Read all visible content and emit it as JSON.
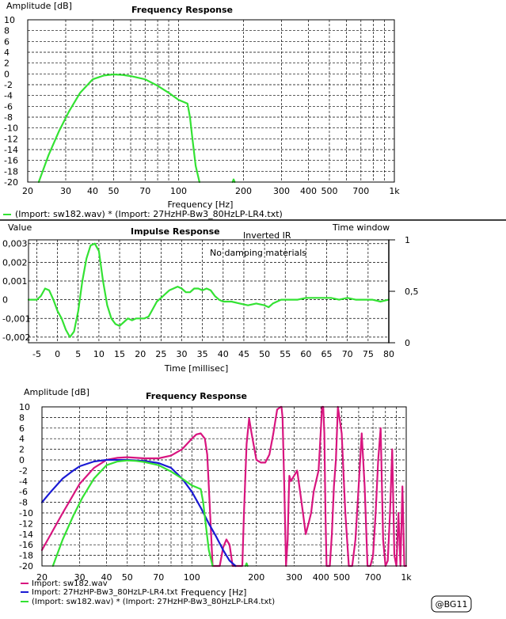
{
  "chart_data": [
    {
      "type": "line",
      "title": "Frequency Response",
      "xlabel": "Frequency [Hz]",
      "ylabel": "Amplitude [dB]",
      "xscale": "log",
      "xlim": [
        20,
        1000
      ],
      "ylim": [
        -20,
        10
      ],
      "x_tick_labels": [
        "20",
        "30",
        "40",
        "50",
        "70",
        "100",
        "200",
        "300",
        "400",
        "500",
        "700",
        "1k"
      ],
      "x_tick_values": [
        20,
        30,
        40,
        50,
        70,
        100,
        200,
        300,
        400,
        500,
        700,
        1000
      ],
      "y_tick_values": [
        10,
        8,
        6,
        4,
        2,
        0,
        -2,
        -4,
        -6,
        -8,
        -10,
        -12,
        -14,
        -16,
        -18,
        -20
      ],
      "grid": true,
      "legend": [
        "(Import:  sw182.wav)  *  (Import:  27HzHP-Bw3_80HzLP-LR4.txt)"
      ],
      "series": [
        {
          "name": "(Import:  sw182.wav)  *  (Import:  27HzHP-Bw3_80HzLP-LR4.txt)",
          "color": "#33e233",
          "x": [
            22.5,
            25,
            28,
            31,
            35,
            40,
            45,
            50,
            55,
            60,
            70,
            80,
            90,
            100,
            110,
            113,
            116,
            120,
            125
          ],
          "y": [
            -20,
            -15,
            -10.5,
            -7,
            -3.5,
            -1,
            -0.3,
            -0.1,
            -0.2,
            -0.4,
            -1,
            -2.2,
            -3.5,
            -4.8,
            -5.5,
            -8,
            -12,
            -17,
            -20
          ]
        },
        {
          "name": "",
          "color": "#33e233",
          "x": [
            178,
            180,
            182
          ],
          "y": [
            -20,
            -19.5,
            -20
          ]
        }
      ]
    },
    {
      "type": "line",
      "title": "Impulse Response",
      "xlabel": "Time [millisec]",
      "ylabel": "Value",
      "y2label": "Time window",
      "xlim": [
        -7,
        80
      ],
      "ylim": [
        -0.0023,
        0.0032
      ],
      "y2lim": [
        0,
        1
      ],
      "x_tick_values": [
        -5,
        0,
        5,
        10,
        15,
        20,
        25,
        30,
        35,
        40,
        45,
        50,
        55,
        60,
        65,
        70,
        75,
        80
      ],
      "y_tick_values": [
        0.003,
        0.002,
        0.001,
        0,
        -0.001,
        -0.002
      ],
      "y_tick_labels": [
        "0,003",
        "0,002",
        "0,001",
        "0",
        "-0,001",
        "-0,002"
      ],
      "y2_tick_values": [
        1,
        0.5,
        0
      ],
      "y2_tick_labels": [
        "1",
        "0,5",
        "0"
      ],
      "grid": true,
      "annotations": [
        "Inverted IR",
        "No damping materials"
      ],
      "series": [
        {
          "name": "",
          "color": "#33e233",
          "x": [
            -7,
            -5,
            -4,
            -3,
            -2,
            -1,
            0,
            1,
            2,
            3,
            4,
            5,
            6,
            7,
            8,
            9,
            10,
            11,
            12,
            13,
            14,
            15,
            16,
            17,
            18,
            19,
            20,
            21,
            22,
            23,
            24,
            25,
            26,
            27,
            28,
            29,
            30,
            31,
            32,
            33,
            34,
            35,
            36,
            37,
            38,
            39,
            40,
            42,
            44,
            46,
            48,
            50,
            51,
            52,
            54,
            56,
            58,
            60,
            62,
            64,
            66,
            68,
            70,
            72,
            74,
            76,
            78,
            80
          ],
          "y": [
            0,
            0,
            0.0002,
            0.0006,
            0.0005,
            0,
            -0.0006,
            -0.001,
            -0.0016,
            -0.002,
            -0.0017,
            -0.0006,
            0.001,
            0.0022,
            0.0029,
            0.003,
            0.0026,
            0.001,
            -0.0003,
            -0.001,
            -0.0013,
            -0.0014,
            -0.0012,
            -0.001,
            -0.0011,
            -0.001,
            -0.001,
            -0.001,
            -0.0009,
            -0.0005,
            -0.0001,
            0.0001,
            0.0003,
            0.0005,
            0.0006,
            0.0007,
            0.0006,
            0.0004,
            0.0004,
            0.0006,
            0.0006,
            0.0005,
            0.0006,
            0.0005,
            0.0002,
            0,
            -0.0001,
            -0.0001,
            -0.0002,
            -0.0003,
            -0.0002,
            -0.0003,
            -0.0004,
            -0.0002,
            0,
            0,
            0,
            0.0001,
            0.0001,
            0.0001,
            0.0001,
            0,
            0.0001,
            0,
            0,
            0,
            -0.0001,
            0
          ]
        },
        {
          "name": "Time window",
          "color": "#000000",
          "axis": "y2",
          "x": [
            80,
            80
          ],
          "y": [
            0,
            1
          ]
        }
      ]
    },
    {
      "type": "line",
      "title": "Frequency Response",
      "xlabel": "Frequency [Hz]",
      "ylabel": "Amplitude [dB]",
      "xscale": "log",
      "xlim": [
        20,
        1000
      ],
      "ylim": [
        -20,
        10
      ],
      "x_tick_labels": [
        "20",
        "30",
        "40",
        "50",
        "70",
        "100",
        "200",
        "300",
        "400",
        "500",
        "700",
        "1k"
      ],
      "x_tick_values": [
        20,
        30,
        40,
        50,
        70,
        100,
        200,
        300,
        400,
        500,
        700,
        1000
      ],
      "y_tick_values": [
        10,
        8,
        6,
        4,
        2,
        0,
        -2,
        -4,
        -6,
        -8,
        -10,
        -12,
        -14,
        -16,
        -18,
        -20
      ],
      "grid": true,
      "legend": [
        "Import: sw182.wav",
        "Import: 27HzHP-Bw3_80HzLP-LR4.txt",
        "(Import: sw182.wav) * (Import: 27HzHP-Bw3_80HzLP-LR4.txt)"
      ],
      "series": [
        {
          "name": "Import: sw182.wav",
          "color": "#d8157f",
          "x": [
            20,
            25,
            30,
            35,
            40,
            45,
            50,
            60,
            70,
            80,
            90,
            100,
            105,
            110,
            115,
            118,
            120,
            123,
            125,
            135,
            140,
            145,
            150,
            155,
            160,
            166,
            170,
            172,
            175,
            180,
            185,
            190,
            200,
            210,
            220,
            230,
            240,
            250,
            260,
            262,
            265,
            270,
            275,
            280,
            283,
            285,
            290,
            300,
            310,
            320,
            330,
            340,
            350,
            360,
            370,
            380,
            390,
            400,
            405,
            410,
            415,
            420,
            425,
            430,
            440,
            450,
            460,
            470,
            480,
            500,
            520,
            540,
            560,
            580,
            600,
            620,
            640,
            660,
            680,
            700,
            720,
            740,
            760,
            780,
            800,
            820,
            840,
            860,
            880,
            900,
            920,
            940,
            960,
            980,
            1000
          ],
          "y": [
            -17,
            -10,
            -4.5,
            -1.5,
            0,
            0.4,
            0.5,
            0.3,
            0.3,
            0.8,
            2,
            4,
            4.8,
            5,
            4,
            1,
            -5,
            -14,
            -20,
            -20,
            -16.5,
            -15,
            -16,
            -20,
            -20,
            -20,
            -20,
            -20,
            -10,
            3,
            7.8,
            5,
            0,
            -0.5,
            -0.5,
            1,
            5,
            9.5,
            10,
            10,
            8,
            -5,
            -20,
            -15,
            -7,
            -3,
            -4,
            -3,
            -2,
            -6,
            -10,
            -14,
            -12,
            -10,
            -6,
            -4,
            -2,
            6,
            10,
            10,
            5,
            -10,
            -20,
            -20,
            -20,
            -14,
            -5,
            0,
            10,
            5,
            -10,
            -20,
            -20,
            -15,
            -5,
            5,
            -5,
            -20,
            -20,
            -18,
            -10,
            0,
            6,
            -15,
            -20,
            -19,
            -10,
            2,
            -18,
            -20,
            -10,
            -20,
            -5,
            -20,
            -20
          ]
        },
        {
          "name": "Import: 27HzHP-Bw3_80HzLP-LR4.txt",
          "color": "#1a1ad4",
          "x": [
            20,
            22,
            25,
            28,
            30,
            35,
            40,
            45,
            50,
            55,
            60,
            70,
            80,
            90,
            100,
            110,
            120,
            130,
            140,
            150,
            160
          ],
          "y": [
            -8,
            -6,
            -3.5,
            -2,
            -1.2,
            -0.3,
            0,
            0,
            0,
            -0.1,
            -0.2,
            -0.6,
            -1.5,
            -3.5,
            -6,
            -9,
            -12,
            -14.5,
            -17,
            -19,
            -20.5
          ]
        },
        {
          "name": "(Import: sw182.wav) * (Import: 27HzHP-Bw3_80HzLP-LR4.txt)",
          "color": "#33e233",
          "x": [
            22.5,
            25,
            28,
            31,
            35,
            40,
            45,
            50,
            55,
            60,
            70,
            80,
            90,
            100,
            110,
            113,
            116,
            120,
            125
          ],
          "y": [
            -20,
            -15,
            -10.5,
            -7,
            -3.5,
            -1,
            -0.3,
            -0.1,
            -0.2,
            -0.4,
            -1,
            -2.2,
            -3.5,
            -4.8,
            -5.5,
            -8,
            -12,
            -17,
            -20
          ]
        },
        {
          "name": "",
          "color": "#33e233",
          "x": [
            178,
            180,
            182
          ],
          "y": [
            -20,
            -19.5,
            -20
          ]
        }
      ]
    }
  ],
  "badge": "@BG11"
}
